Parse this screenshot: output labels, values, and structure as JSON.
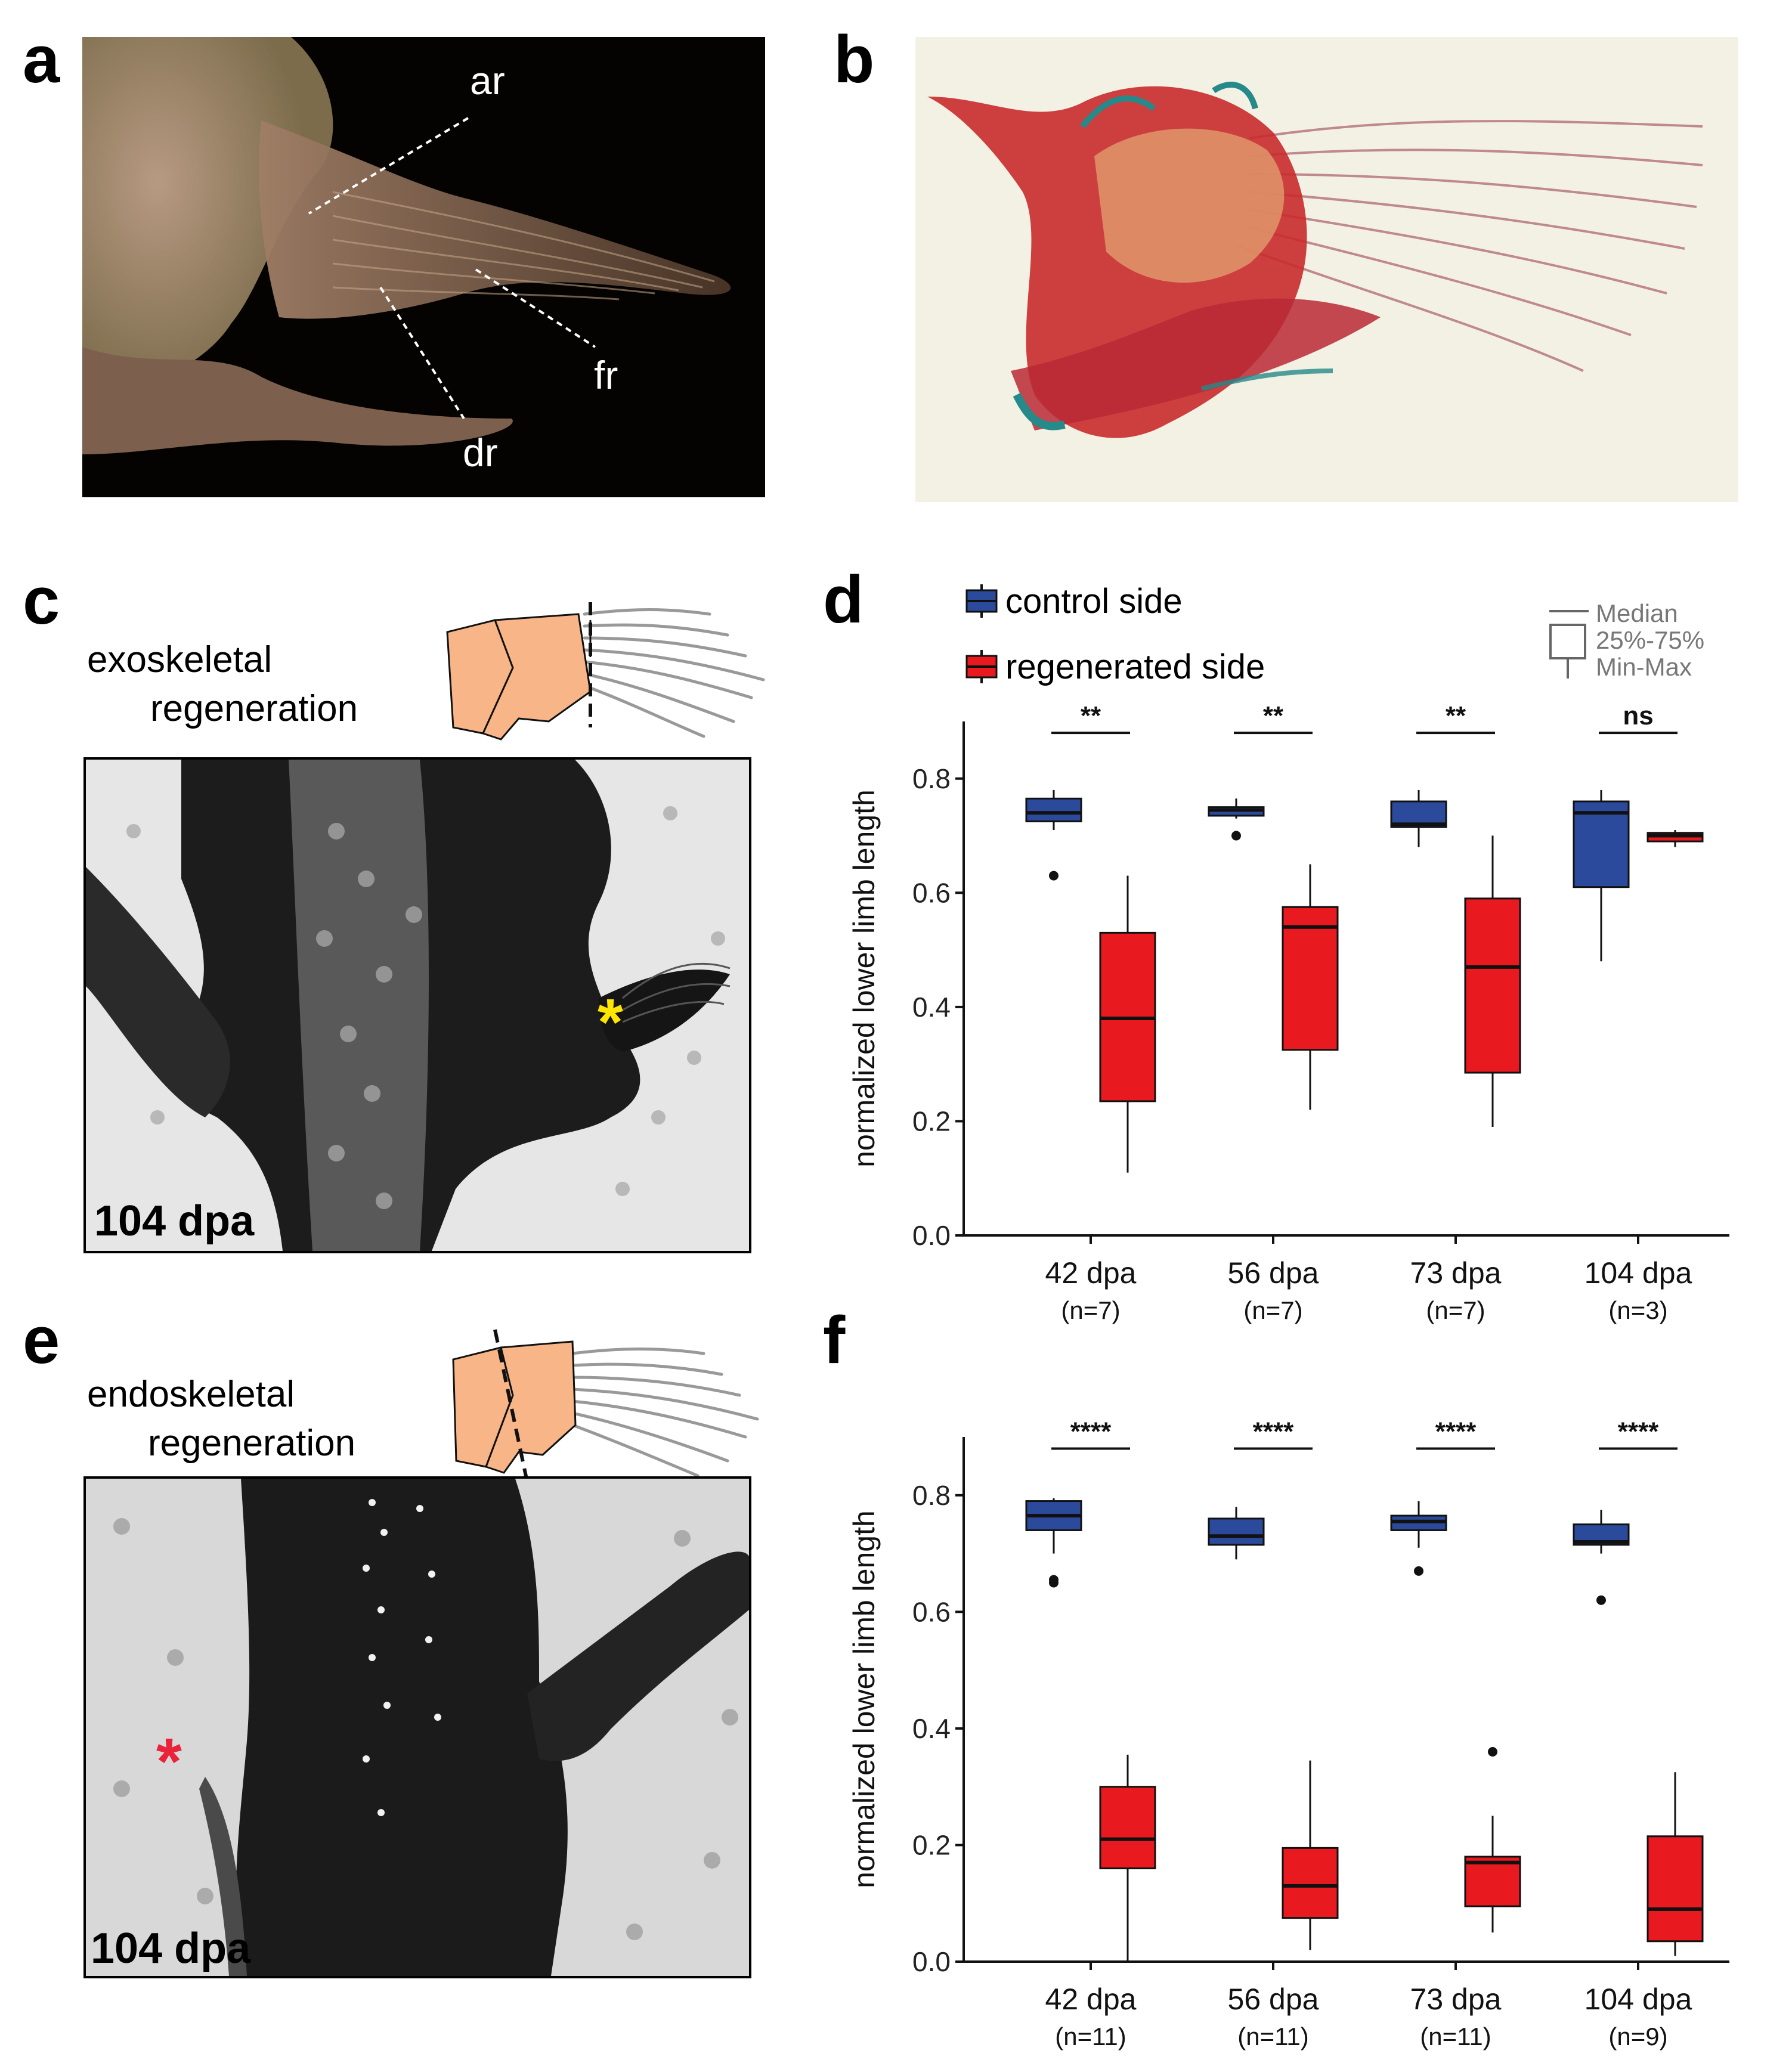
{
  "panels": {
    "a": {
      "letter": "a",
      "labels": {
        "ar": "ar",
        "fr": "fr",
        "dr": "dr"
      }
    },
    "b": {
      "letter": "b"
    },
    "c": {
      "letter": "c",
      "title_line1": "exoskeletal",
      "title_line2": "regeneration",
      "timepoint": "104 dpa",
      "marker": "*"
    },
    "d": {
      "letter": "d"
    },
    "e": {
      "letter": "e",
      "title_line1": "endoskeletal",
      "title_line2": "regeneration",
      "timepoint": "104 dpa",
      "marker": "*"
    },
    "f": {
      "letter": "f"
    }
  },
  "legend": {
    "control": "control side",
    "regenerated": "regenerated side",
    "key": [
      "Median",
      "25%-75%",
      "Min-Max"
    ]
  },
  "colors": {
    "control": "#2b4a9c",
    "regenerated": "#e8191f",
    "marker_yellow": "#ffe600",
    "marker_red": "#e8233a",
    "tissue": "#f8b688"
  },
  "chart_data": [
    {
      "type": "box",
      "panel": "d",
      "ylabel": "normalized lower limb length",
      "ylim": [
        0,
        0.9
      ],
      "yticks": [
        "0.0",
        "0.2",
        "0.4",
        "0.6",
        "0.8"
      ],
      "groups": [
        {
          "label": "42 dpa",
          "n": "(n=7)",
          "sig": "**",
          "control": {
            "min": 0.71,
            "q1": 0.725,
            "median": 0.74,
            "q3": 0.765,
            "max": 0.78,
            "outliers": [
              0.63
            ]
          },
          "regenerated": {
            "min": 0.11,
            "q1": 0.235,
            "median": 0.38,
            "q3": 0.53,
            "max": 0.63,
            "outliers": []
          }
        },
        {
          "label": "56 dpa",
          "n": "(n=7)",
          "sig": "**",
          "control": {
            "min": 0.73,
            "q1": 0.735,
            "median": 0.745,
            "q3": 0.75,
            "max": 0.765,
            "outliers": [
              0.7
            ]
          },
          "regenerated": {
            "min": 0.22,
            "q1": 0.325,
            "median": 0.54,
            "q3": 0.575,
            "max": 0.65,
            "outliers": []
          }
        },
        {
          "label": "73 dpa",
          "n": "(n=7)",
          "sig": "**",
          "control": {
            "min": 0.68,
            "q1": 0.715,
            "median": 0.72,
            "q3": 0.76,
            "max": 0.78,
            "outliers": []
          },
          "regenerated": {
            "min": 0.19,
            "q1": 0.285,
            "median": 0.47,
            "q3": 0.59,
            "max": 0.7,
            "outliers": []
          }
        },
        {
          "label": "104 dpa",
          "n": "(n=3)",
          "sig": "ns",
          "control": {
            "min": 0.48,
            "q1": 0.61,
            "median": 0.74,
            "q3": 0.76,
            "max": 0.78,
            "outliers": []
          },
          "regenerated": {
            "min": 0.68,
            "q1": 0.69,
            "median": 0.7,
            "q3": 0.705,
            "max": 0.71,
            "outliers": []
          }
        }
      ]
    },
    {
      "type": "box",
      "panel": "f",
      "ylabel": "normalized lower limb length",
      "ylim": [
        0,
        0.9
      ],
      "yticks": [
        "0.0",
        "0.2",
        "0.4",
        "0.6",
        "0.8"
      ],
      "groups": [
        {
          "label": "42 dpa",
          "n": "(n=11)",
          "sig": "****",
          "control": {
            "min": 0.7,
            "q1": 0.74,
            "median": 0.765,
            "q3": 0.79,
            "max": 0.795,
            "outliers": [
              0.655,
              0.65
            ]
          },
          "regenerated": {
            "min": 0.0,
            "q1": 0.16,
            "median": 0.21,
            "q3": 0.3,
            "max": 0.355,
            "outliers": []
          }
        },
        {
          "label": "56 dpa",
          "n": "(n=11)",
          "sig": "****",
          "control": {
            "min": 0.69,
            "q1": 0.715,
            "median": 0.73,
            "q3": 0.76,
            "max": 0.78,
            "outliers": []
          },
          "regenerated": {
            "min": 0.02,
            "q1": 0.075,
            "median": 0.13,
            "q3": 0.195,
            "max": 0.345,
            "outliers": []
          }
        },
        {
          "label": "73 dpa",
          "n": "(n=11)",
          "sig": "****",
          "control": {
            "min": 0.71,
            "q1": 0.74,
            "median": 0.755,
            "q3": 0.765,
            "max": 0.79,
            "outliers": [
              0.67
            ]
          },
          "regenerated": {
            "min": 0.05,
            "q1": 0.095,
            "median": 0.17,
            "q3": 0.18,
            "max": 0.25,
            "outliers": [
              0.36
            ]
          }
        },
        {
          "label": "104 dpa",
          "n": "(n=9)",
          "sig": "****",
          "control": {
            "min": 0.7,
            "q1": 0.715,
            "median": 0.72,
            "q3": 0.75,
            "max": 0.775,
            "outliers": [
              0.62
            ]
          },
          "regenerated": {
            "min": 0.01,
            "q1": 0.035,
            "median": 0.09,
            "q3": 0.215,
            "max": 0.325,
            "outliers": []
          }
        }
      ]
    }
  ]
}
